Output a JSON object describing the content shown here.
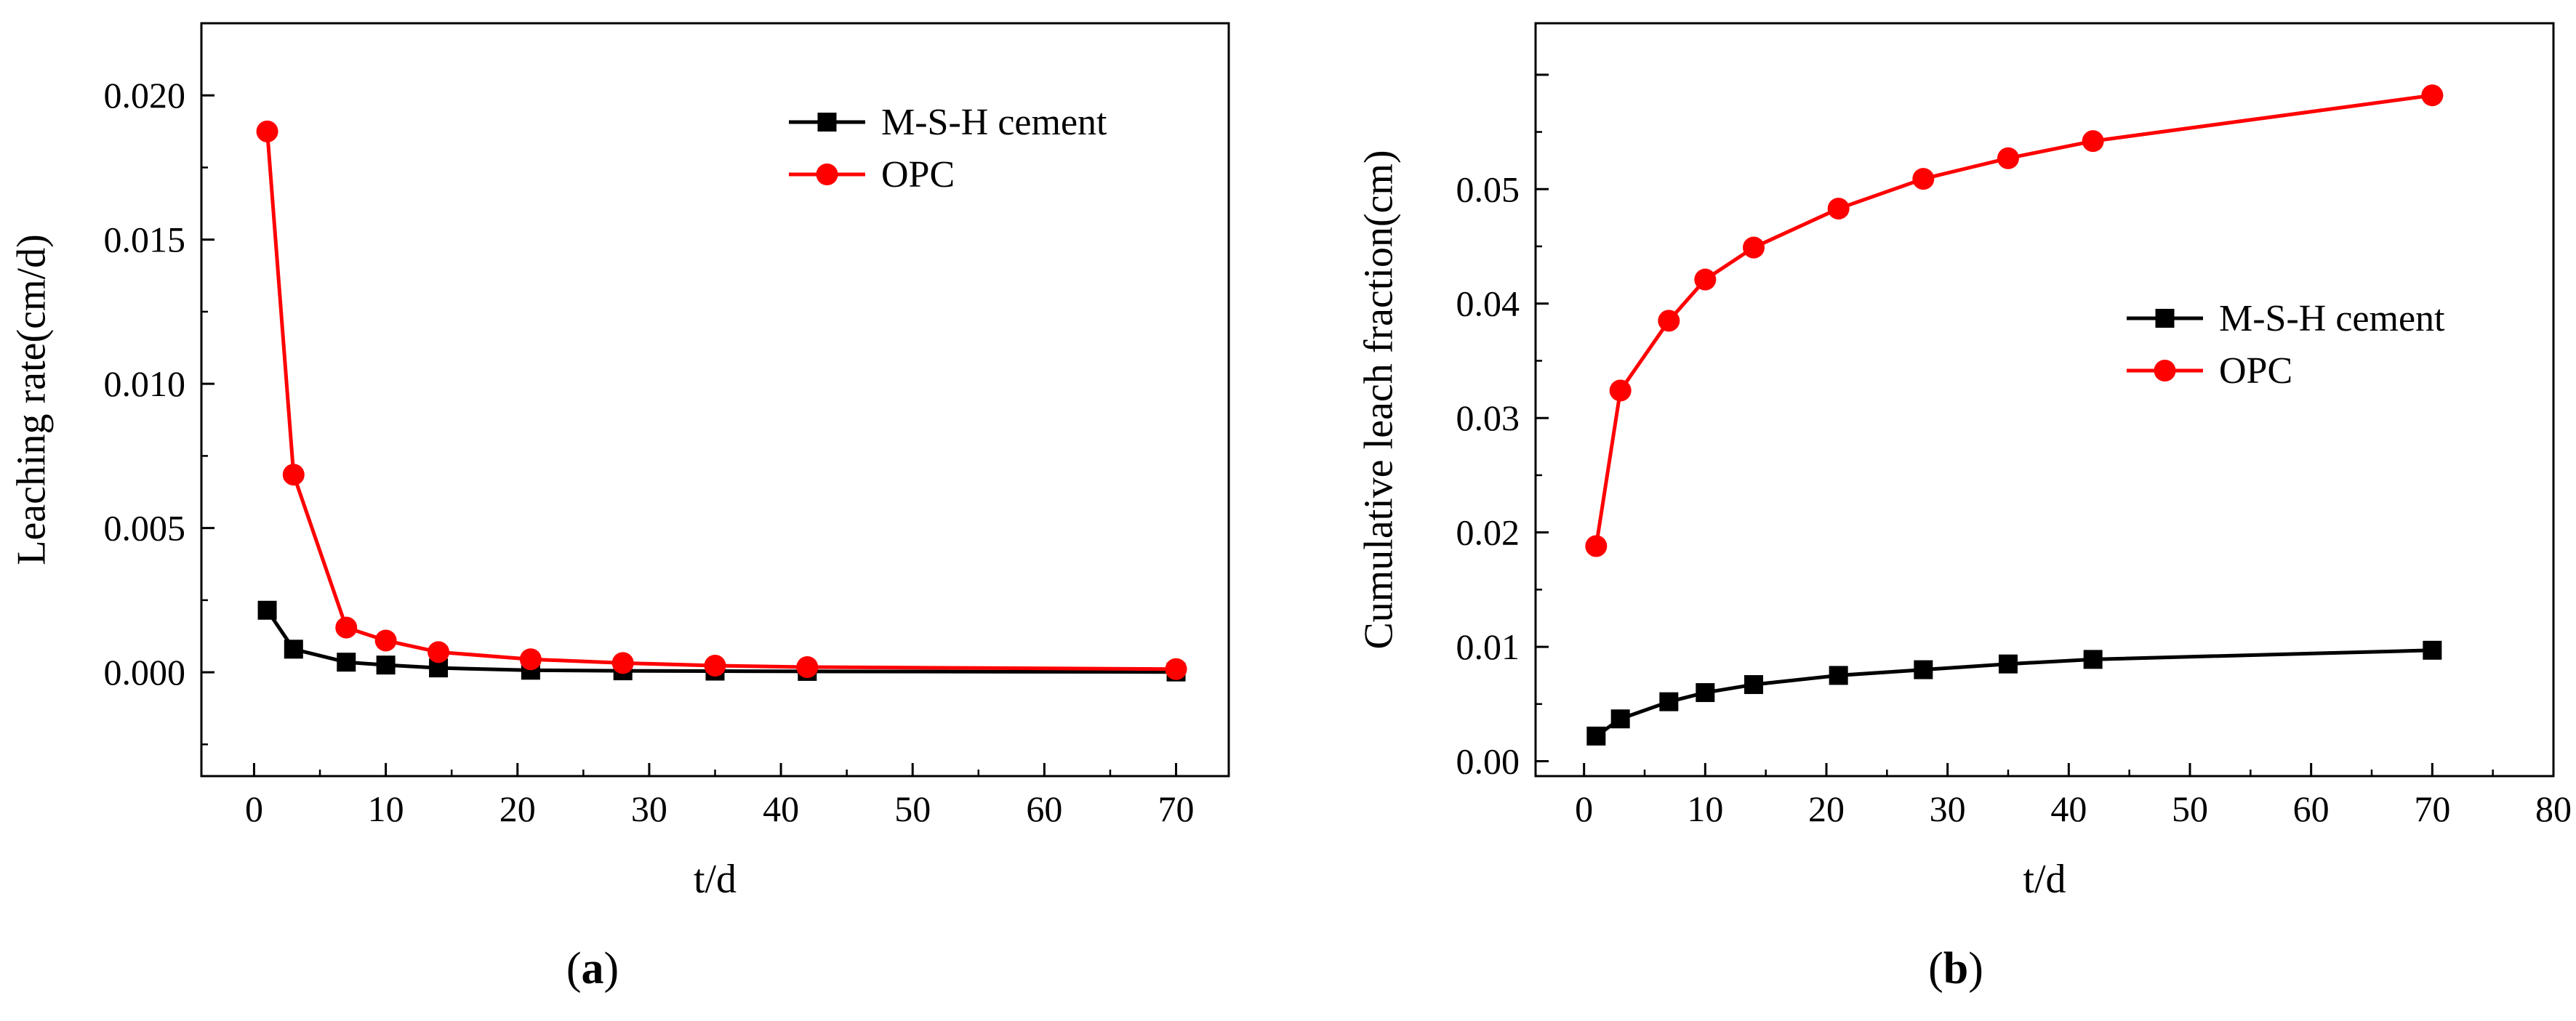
{
  "chart_data": [
    {
      "type": "line",
      "panel_label": "a",
      "title": "",
      "xlabel": "t/d",
      "ylabel": "Leaching rate(cm/d)",
      "xlim": [
        -4,
        74
      ],
      "ylim": [
        -0.0036,
        0.0225
      ],
      "xticks": [
        0,
        10,
        20,
        30,
        40,
        50,
        60,
        70
      ],
      "xtick_labels": [
        "0",
        "10",
        "20",
        "30",
        "40",
        "50",
        "60",
        "70"
      ],
      "yticks": [
        0.0,
        0.005,
        0.01,
        0.015,
        0.02
      ],
      "ytick_labels": [
        "0.000",
        "0.005",
        "0.010",
        "0.015",
        "0.020"
      ],
      "legend_position": "top-right",
      "x": [
        1,
        3,
        7,
        10,
        14,
        21,
        28,
        35,
        42,
        70
      ],
      "series": [
        {
          "name": "M-S-H cement",
          "color": "#000000",
          "marker": "square",
          "values": [
            0.00215,
            0.0008,
            0.00035,
            0.00025,
            0.00015,
            7e-05,
            5e-05,
            4e-05,
            3e-05,
            1e-05
          ]
        },
        {
          "name": "OPC",
          "color": "#ff0000",
          "marker": "circle",
          "values": [
            0.01875,
            0.00685,
            0.00155,
            0.0011,
            0.0007,
            0.00045,
            0.00032,
            0.00023,
            0.00018,
            0.00011
          ]
        }
      ]
    },
    {
      "type": "line",
      "panel_label": "b",
      "title": "",
      "xlabel": "t/d",
      "ylabel": "Cumulative leach fraction(cm)",
      "xlim": [
        -4,
        80
      ],
      "ylim": [
        -0.0013,
        0.0645
      ],
      "xticks": [
        0,
        10,
        20,
        30,
        40,
        50,
        60,
        70,
        80
      ],
      "xtick_labels": [
        "0",
        "10",
        "20",
        "30",
        "40",
        "50",
        "60",
        "70",
        "80"
      ],
      "yticks": [
        0.0,
        0.01,
        0.02,
        0.03,
        0.04,
        0.05
      ],
      "ytick_labels": [
        "0.00",
        "0.01",
        "0.02",
        "0.03",
        "0.04",
        "0.05"
      ],
      "legend_position": "center-right",
      "x": [
        1,
        3,
        7,
        10,
        14,
        21,
        28,
        35,
        42,
        70
      ],
      "series": [
        {
          "name": "M-S-H cement",
          "color": "#000000",
          "marker": "square",
          "values": [
            0.0022,
            0.0037,
            0.0052,
            0.006,
            0.0067,
            0.0075,
            0.008,
            0.0085,
            0.0089,
            0.0097
          ]
        },
        {
          "name": "OPC",
          "color": "#ff0000",
          "marker": "circle",
          "values": [
            0.0188,
            0.0324,
            0.0385,
            0.0421,
            0.0449,
            0.0483,
            0.0509,
            0.0527,
            0.0542,
            0.0582
          ]
        }
      ]
    }
  ],
  "captions": [
    "a",
    "b"
  ]
}
